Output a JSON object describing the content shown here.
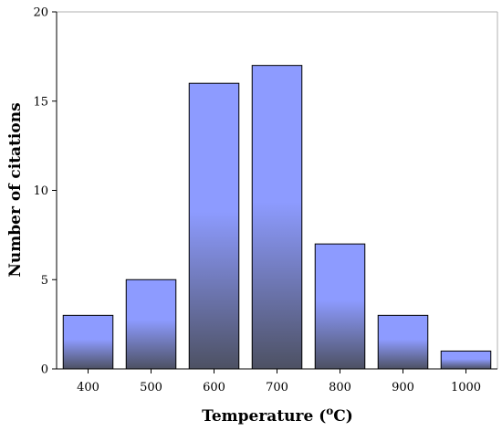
{
  "chart_data": {
    "type": "bar",
    "title": "",
    "xlabel": "Temperature (",
    "xlabel_sup": "o",
    "xlabel_suffix": "C)",
    "ylabel": "Number of citations",
    "categories": [
      "400",
      "500",
      "600",
      "700",
      "800",
      "900",
      "1000"
    ],
    "values": [
      3,
      5,
      16,
      17,
      7,
      3,
      1
    ],
    "ylim": [
      0,
      20
    ],
    "yticks": [
      0,
      5,
      10,
      15,
      20
    ],
    "grid": false,
    "legend": "none",
    "bar_color_top": "#8d9bff",
    "bar_color_bottom": "#4d5163"
  }
}
